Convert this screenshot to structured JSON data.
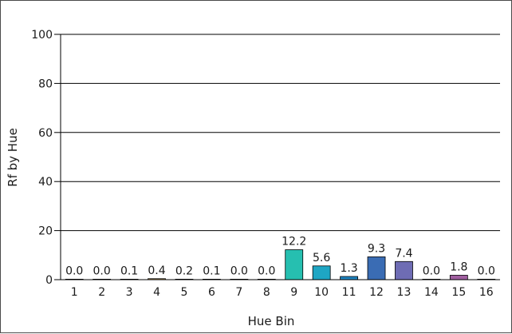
{
  "chart_data": {
    "type": "bar",
    "xlabel": "Hue Bin",
    "ylabel": "Rf by Hue",
    "ylim": [
      0,
      100
    ],
    "yticks": [
      0,
      20,
      40,
      60,
      80,
      100
    ],
    "grid": true,
    "categories": [
      "1",
      "2",
      "3",
      "4",
      "5",
      "6",
      "7",
      "8",
      "9",
      "10",
      "11",
      "12",
      "13",
      "14",
      "15",
      "16"
    ],
    "values": [
      0.0,
      0.0,
      0.1,
      0.4,
      0.2,
      0.1,
      0.0,
      0.0,
      12.2,
      5.6,
      1.3,
      9.3,
      7.4,
      0.0,
      1.8,
      0.0
    ],
    "value_labels": [
      "0.0",
      "0.0",
      "0.1",
      "0.4",
      "0.2",
      "0.1",
      "0.0",
      "0.0",
      "12.2",
      "5.6",
      "1.3",
      "9.3",
      "7.4",
      "0.0",
      "1.8",
      "0.0"
    ],
    "colors": [
      "#e8594f",
      "#e8764a",
      "#e89a4e",
      "#e8b860",
      "#d9c66a",
      "#b7c46a",
      "#8fc27a",
      "#5fbf8e",
      "#26bfb0",
      "#1ea6c4",
      "#1f84c0",
      "#3a6cb4",
      "#6e6cb4",
      "#8a64b0",
      "#a05ea0",
      "#c0608a"
    ]
  }
}
